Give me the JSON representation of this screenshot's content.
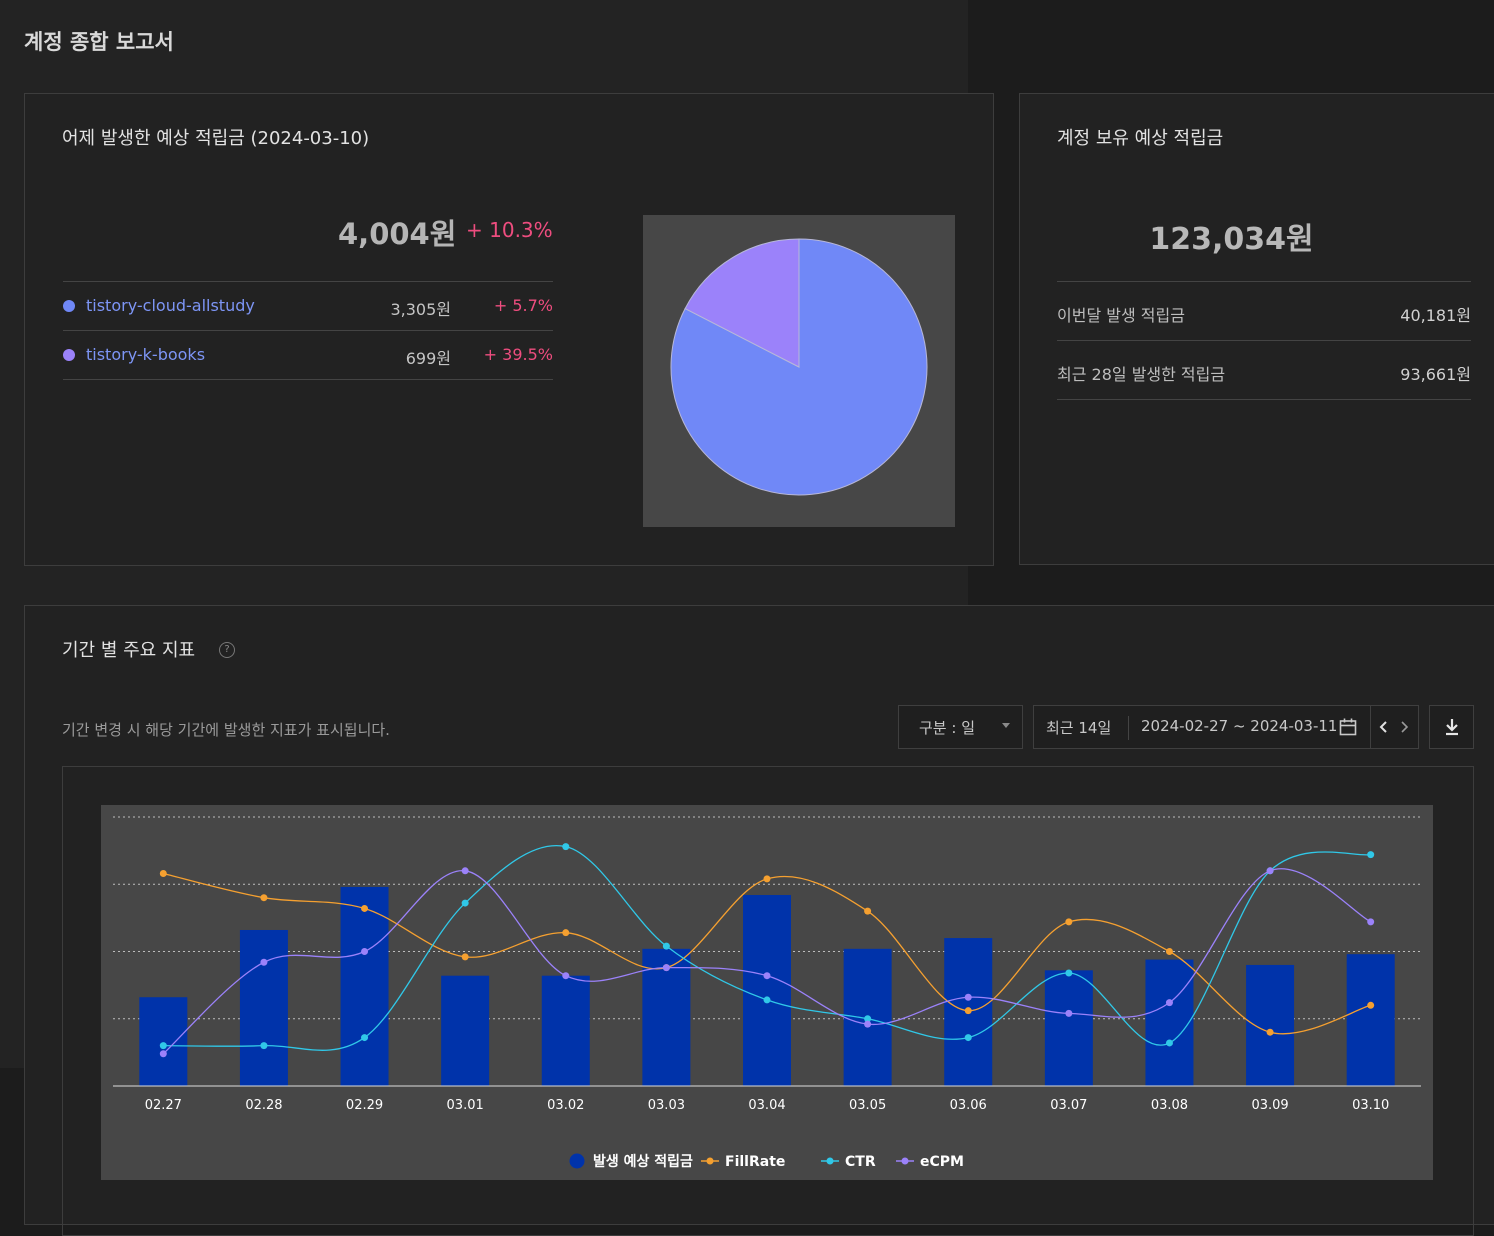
{
  "page": {
    "title": "계정 종합 보고서"
  },
  "yesterday": {
    "title": "어제 발생한 예상 적립금 (2024-03-10)",
    "total": "4,004원",
    "delta": "+ 10.3%",
    "sites": [
      {
        "name": "tistory-cloud-allstudy",
        "amount": "3,305원",
        "delta": "+ 5.7%",
        "color": "#7088f7"
      },
      {
        "name": "tistory-k-books",
        "amount": "699원",
        "delta": "+ 39.5%",
        "color": "#9b82fa"
      }
    ]
  },
  "pie_chart_data": {
    "type": "pie",
    "labels": [
      "tistory-cloud-allstudy",
      "tistory-k-books"
    ],
    "values": [
      3305,
      699
    ],
    "colors": [
      "#7088f7",
      "#9b82fa"
    ]
  },
  "balance": {
    "title": "계정 보유 예상 적립금",
    "total": "123,034원",
    "rows": [
      {
        "label": "이번달 발생 적립금",
        "value": "40,181원"
      },
      {
        "label": "최근 28일 발생한 적립금",
        "value": "93,661원"
      }
    ]
  },
  "metrics": {
    "title": "기간 별 주요 지표",
    "help_icon": "question-circle-icon",
    "description": "기간 변경 시 해당 기간에 발생한 지표가 표시됩니다.",
    "granularity": "구분 : 일",
    "range_preset": "최근 14일",
    "date_range": "2024-02-27 ~ 2024-03-11"
  },
  "chart_data": {
    "type": "bar",
    "categories": [
      "02.27",
      "02.28",
      "02.29",
      "03.01",
      "03.02",
      "03.03",
      "03.04",
      "03.05",
      "03.06",
      "03.07",
      "03.08",
      "03.09",
      "03.10"
    ],
    "ylim": [
      0,
      100
    ],
    "grid": true,
    "legend_position": "bottom",
    "series": [
      {
        "name": "발생 예상 적립금",
        "kind": "bar",
        "color": "#0033aa",
        "values": [
          33,
          58,
          74,
          41,
          41,
          51,
          71,
          51,
          55,
          43,
          47,
          45,
          49
        ]
      },
      {
        "name": "FillRate",
        "kind": "line",
        "color": "#f5a030",
        "values": [
          79,
          70,
          66,
          48,
          57,
          44,
          77,
          65,
          28,
          61,
          50,
          20,
          30
        ]
      },
      {
        "name": "CTR",
        "kind": "line",
        "color": "#30c8e8",
        "values": [
          15,
          15,
          18,
          68,
          89,
          52,
          32,
          25,
          18,
          42,
          16,
          80,
          86
        ]
      },
      {
        "name": "eCPM",
        "kind": "line",
        "color": "#9b82fa",
        "values": [
          12,
          46,
          50,
          80,
          41,
          44,
          41,
          23,
          33,
          27,
          31,
          80,
          61
        ]
      }
    ]
  }
}
